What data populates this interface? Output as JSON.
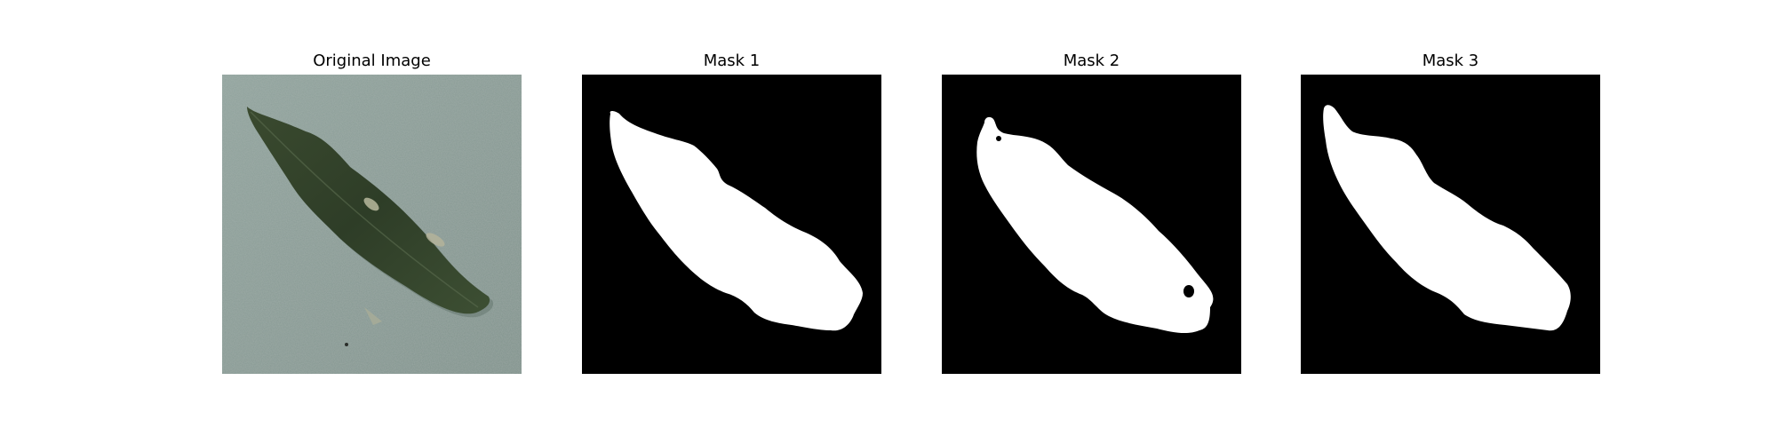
{
  "panels": [
    {
      "title": "Original Image",
      "kind": "photo"
    },
    {
      "title": "Mask 1",
      "kind": "mask"
    },
    {
      "title": "Mask 2",
      "kind": "mask"
    },
    {
      "title": "Mask 3",
      "kind": "mask"
    }
  ],
  "colors": {
    "background": "#879a94",
    "leaf_dark": "#2f3f28",
    "leaf_mid": "#3f5232",
    "leaf_highlight": "#b7b89e",
    "mask_background": "#000000",
    "mask_foreground": "#ffffff"
  }
}
